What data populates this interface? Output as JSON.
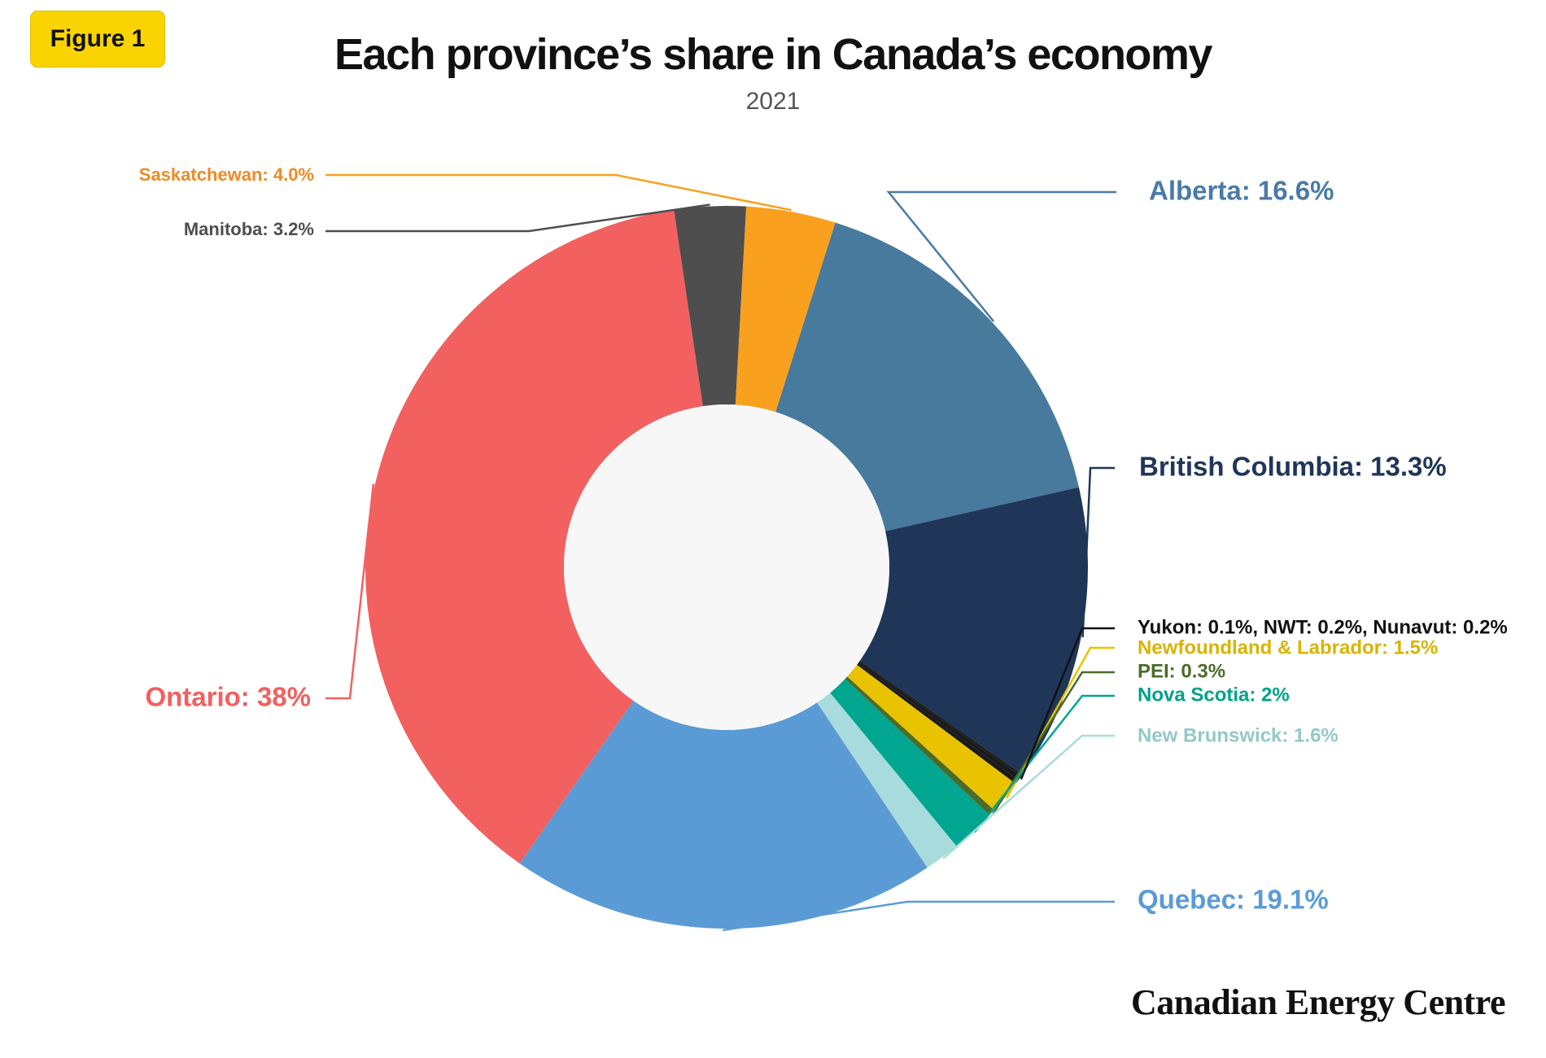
{
  "badge": "Figure 1",
  "chart_data": {
    "type": "pie",
    "title": "Each province’s share in Canada’s economy",
    "subtitle": "2021",
    "slices": [
      {
        "name": "Alberta",
        "value": 16.6,
        "label": "Alberta: 16.6%",
        "color": "#477a9c"
      },
      {
        "name": "British Columbia",
        "value": 13.3,
        "label": "British Columbia: 13.3%",
        "color": "#1f3658"
      },
      {
        "name": "Yukon",
        "value": 0.1,
        "label": "",
        "color": "#1a1a1a"
      },
      {
        "name": "NWT",
        "value": 0.2,
        "label": "",
        "color": "#1a1a1a"
      },
      {
        "name": "Nunavut",
        "value": 0.2,
        "label": "",
        "color": "#1a1a1a"
      },
      {
        "name": "Newfoundland & Labrador",
        "value": 1.5,
        "label": "Newfoundland & Labrador: 1.5%",
        "color": "#e9c200"
      },
      {
        "name": "PEI",
        "value": 0.3,
        "label": "PEI: 0.3%",
        "color": "#4a6b2a"
      },
      {
        "name": "Nova Scotia",
        "value": 2.0,
        "label": "Nova Scotia: 2%",
        "color": "#00a690"
      },
      {
        "name": "New Brunswick",
        "value": 1.6,
        "label": "New Brunswick: 1.6%",
        "color": "#a8dcdc"
      },
      {
        "name": "Quebec",
        "value": 19.1,
        "label": "Quebec: 19.1%",
        "color": "#5b9bd5"
      },
      {
        "name": "Ontario",
        "value": 38.0,
        "label": "Ontario: 38%",
        "color": "#f26060"
      },
      {
        "name": "Manitoba",
        "value": 3.2,
        "label": "Manitoba: 3.2%",
        "color": "#4e4e4e"
      },
      {
        "name": "Saskatchewan",
        "value": 4.0,
        "label": "Saskatchewan: 4.0%",
        "color": "#f9a01e"
      }
    ],
    "territories_label": "Yukon: 0.1%, NWT: 0.2%, Nunavut: 0.2%",
    "territories_color": "#111111",
    "label_colors": {
      "Alberta": "#4a7ba6",
      "British Columbia": "#1f3658",
      "Newfoundland & Labrador": "#d8b400",
      "PEI": "#4a6b2a",
      "Nova Scotia": "#00a08a",
      "New Brunswick": "#93c8c8",
      "Quebec": "#5b9bd5",
      "Ontario": "#f26060",
      "Manitoba": "#4e4e4e",
      "Saskatchewan": "#ef8a24"
    },
    "hole_color": "#f7f7f7",
    "legend": "none"
  },
  "footer": {
    "brand": "Canadian Energy Centre"
  }
}
